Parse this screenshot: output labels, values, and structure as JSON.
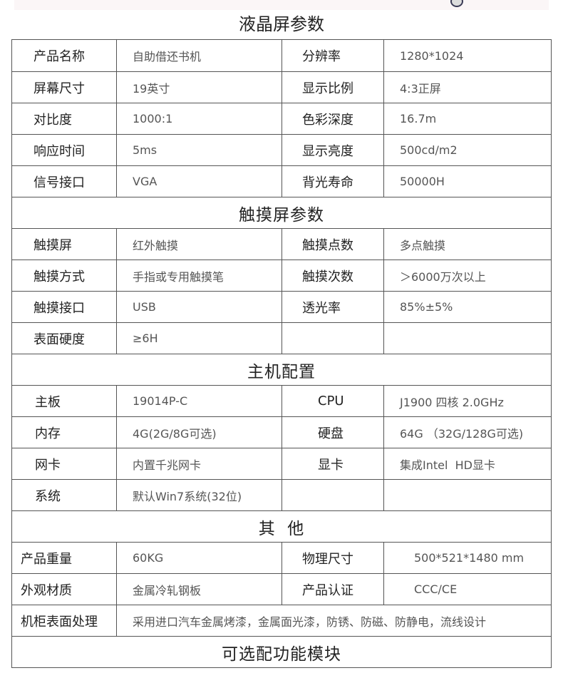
{
  "title": "液晶屏参数",
  "sections": [
    {
      "rows": [
        [
          "产品名称",
          "自助借还书机",
          "分辨率",
          "1280*1024"
        ],
        [
          "屏幕尺寸",
          "19英寸",
          "显示比例",
          "4:3正屏"
        ],
        [
          "对比度",
          "1000:1",
          "色彩深度",
          "16.7m"
        ],
        [
          "响应时间",
          "5ms",
          "显示亮度",
          "500cd/m2"
        ],
        [
          "信号接口",
          "VGA",
          "背光寿命",
          "50000H"
        ]
      ]
    },
    {
      "header": "触摸屏参数",
      "rows": [
        [
          "触摸屏",
          "红外触摸",
          "触摸点数",
          "多点触摸"
        ],
        [
          "触摸方式",
          "手指或专用触摸笔",
          "触摸次数",
          "＞6000万次以上"
        ],
        [
          "触摸接口",
          "USB",
          "透光率",
          "85%±5%"
        ],
        [
          "表面硬度",
          "≥6H",
          "",
          ""
        ]
      ]
    },
    {
      "header": "主机配置",
      "rows": [
        [
          "主板",
          "19014P-C",
          "CPU",
          "J1900 四核 2.0GHz"
        ],
        [
          "内存",
          "4G(2G/8G可选)",
          "硬盘",
          "64G （32G/128G可选)"
        ],
        [
          "网卡",
          "内置千兆网卡",
          "显卡",
          "集成Intel  HD显卡"
        ],
        [
          "系统",
          "默认Win7系统(32位)",
          "",
          ""
        ]
      ]
    },
    {
      "header": "其  他",
      "rows": [
        [
          "产品重量",
          "60KG",
          "物理尺寸",
          "500*521*1480 mm"
        ],
        [
          "外观材质",
          "金属冷轧钢板",
          "产品认证",
          "CCC/CE"
        ],
        [
          "机柜表面处理",
          "采用进口汽车金属烤漆，金属面光漆，防锈、防磁、防静电，流线设计"
        ]
      ]
    },
    {
      "header": "可选配功能模块",
      "rows": []
    }
  ]
}
